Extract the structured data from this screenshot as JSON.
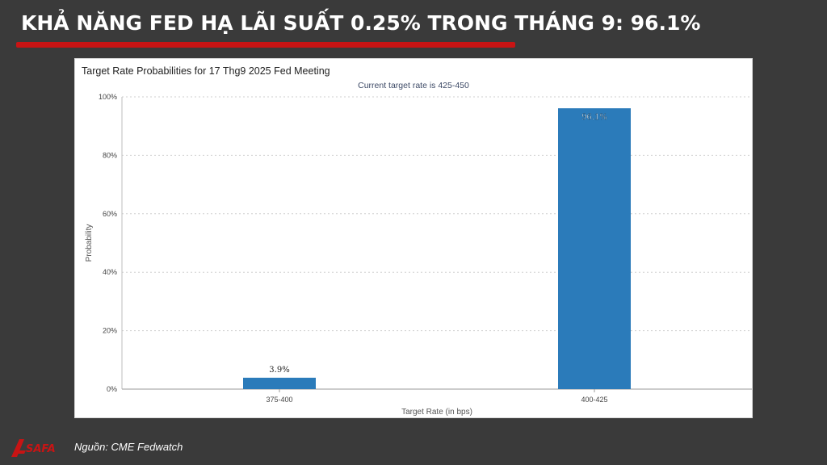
{
  "headline": "KHẢ NĂNG FED HẠ LÃI SUẤT 0.25% TRONG THÁNG 9: 96.1%",
  "source": "Nguồn: CME Fedwatch",
  "logo_text": "SAFA",
  "colors": {
    "accent": "#c81414",
    "bar": "#2b7bba",
    "background": "#3a3a3a"
  },
  "chart_data": {
    "type": "bar",
    "title": "Target Rate Probabilities for 17 Thg9 2025 Fed Meeting",
    "subtitle": "Current target rate is 425-450",
    "xlabel": "Target Rate (in bps)",
    "ylabel": "Probability",
    "categories": [
      "375-400",
      "400-425"
    ],
    "values": [
      3.9,
      96.1
    ],
    "data_labels": [
      "3.9%",
      "96.1%"
    ],
    "ylim": [
      0,
      100
    ],
    "yticks": [
      0,
      20,
      40,
      60,
      80,
      100
    ],
    "ytick_labels": [
      "0%",
      "20%",
      "40%",
      "60%",
      "80%",
      "100%"
    ],
    "grid": true,
    "legend": "none"
  }
}
